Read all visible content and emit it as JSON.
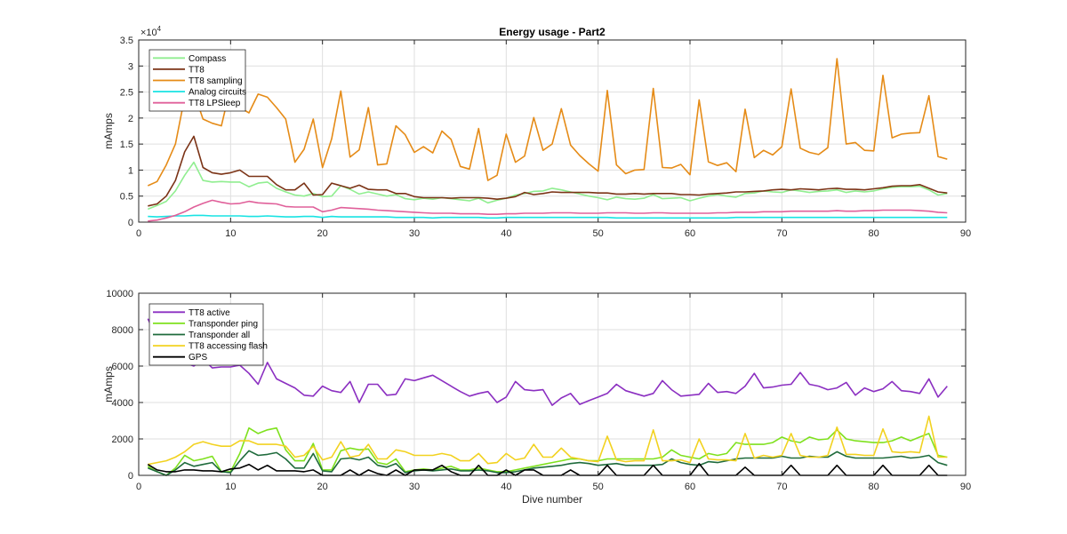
{
  "chart_data": [
    {
      "type": "line",
      "title": "Energy usage - Part2",
      "xlabel": "",
      "ylabel": "mAmps",
      "exponent_label": "×10",
      "exponent_power": "4",
      "xlim": [
        0,
        90
      ],
      "ylim": [
        0,
        35000
      ],
      "xticks": [
        "0",
        "10",
        "20",
        "30",
        "40",
        "50",
        "60",
        "70",
        "80",
        "90"
      ],
      "yticks": [
        "0",
        "0.5",
        "1",
        "1.5",
        "2",
        "2.5",
        "3",
        "3.5"
      ],
      "grid": true,
      "legend_position": "top-left",
      "x_start": 1,
      "series": [
        {
          "name": "Compass",
          "color": "#90ee90",
          "values": [
            2500,
            3200,
            4000,
            6000,
            9000,
            11500,
            8000,
            7700,
            7800,
            7700,
            7700,
            6800,
            7500,
            7700,
            6500,
            5800,
            5200,
            5000,
            5500,
            4900,
            5000,
            7000,
            6300,
            5400,
            5800,
            5400,
            5000,
            5300,
            4500,
            4300,
            4600,
            4400,
            4700,
            4500,
            4300,
            4100,
            4600,
            3700,
            4200,
            4600,
            5200,
            5500,
            5900,
            6000,
            6500,
            6200,
            5800,
            5400,
            5000,
            4700,
            4300,
            4800,
            4500,
            4400,
            4600,
            5300,
            4500,
            4600,
            4700,
            4100,
            4600,
            5000,
            5300,
            5000,
            4800,
            5500,
            5600,
            6000,
            5800,
            5700,
            6200,
            6000,
            5700,
            5900,
            6000,
            6200,
            5700,
            6000,
            5800,
            6000,
            6400,
            6700,
            6800,
            6800,
            6900,
            6200,
            5200,
            5500
          ]
        },
        {
          "name": "TT8",
          "color": "#7b3316",
          "values": [
            3100,
            3500,
            5000,
            8000,
            13500,
            16500,
            10500,
            9500,
            9200,
            9500,
            10000,
            8800,
            8800,
            8800,
            7200,
            6200,
            6200,
            7500,
            5200,
            5300,
            7500,
            7000,
            6500,
            7100,
            6300,
            6200,
            6200,
            5500,
            5500,
            4900,
            4700,
            4700,
            4700,
            4600,
            4700,
            4700,
            4700,
            4600,
            4400,
            4600,
            4900,
            5700,
            5300,
            5500,
            5800,
            5700,
            5700,
            5700,
            5700,
            5600,
            5600,
            5400,
            5400,
            5500,
            5400,
            5500,
            5500,
            5500,
            5300,
            5300,
            5200,
            5400,
            5500,
            5600,
            5800,
            5800,
            5900,
            6000,
            6200,
            6300,
            6200,
            6400,
            6300,
            6200,
            6400,
            6500,
            6300,
            6300,
            6200,
            6400,
            6600,
            6900,
            7000,
            7000,
            7200,
            6500,
            5800,
            5600
          ]
        },
        {
          "name": "TT8 sampling",
          "color": "#e58b17",
          "values": [
            7000,
            7800,
            11000,
            15000,
            24000,
            25000,
            19800,
            19000,
            18500,
            26000,
            22000,
            21000,
            24600,
            24000,
            22000,
            19800,
            11500,
            14000,
            19800,
            10500,
            16000,
            25200,
            12500,
            13900,
            22000,
            11000,
            11200,
            18500,
            16800,
            13400,
            14500,
            13300,
            17500,
            15900,
            10700,
            10200,
            18000,
            8000,
            9000,
            16900,
            11500,
            12700,
            20100,
            13800,
            15000,
            21800,
            14800,
            12800,
            11200,
            9800,
            25300,
            11000,
            9300,
            10000,
            10100,
            25700,
            10500,
            10400,
            11100,
            9100,
            23500,
            11600,
            10900,
            11400,
            9700,
            21700,
            12400,
            13800,
            12900,
            14500,
            25600,
            14200,
            13400,
            13000,
            14300,
            31400,
            15000,
            15300,
            13800,
            13700,
            28200,
            16200,
            16900,
            17100,
            17200,
            24300,
            12600,
            12100
          ]
        },
        {
          "name": "Analog circuits",
          "color": "#19e3e3",
          "values": [
            1100,
            1000,
            1100,
            1200,
            1200,
            1300,
            1300,
            1200,
            1200,
            1200,
            1200,
            1100,
            1100,
            1200,
            1100,
            1000,
            1000,
            1100,
            1100,
            900,
            1100,
            1000,
            1000,
            1000,
            1000,
            1000,
            1000,
            900,
            900,
            900,
            900,
            800,
            900,
            900,
            900,
            900,
            900,
            800,
            800,
            900,
            900,
            900,
            900,
            900,
            900,
            900,
            900,
            900,
            900,
            900,
            900,
            800,
            800,
            800,
            800,
            800,
            800,
            800,
            800,
            800,
            800,
            800,
            800,
            800,
            900,
            900,
            900,
            900,
            900,
            900,
            900,
            900,
            900,
            900,
            900,
            900,
            900,
            900,
            900,
            900,
            900,
            900,
            900,
            900,
            900,
            900,
            900,
            900
          ]
        },
        {
          "name": "TT8 LPSleep",
          "color": "#e0609a",
          "values": [
            200,
            400,
            800,
            1300,
            2000,
            2900,
            3600,
            4200,
            3800,
            3500,
            3600,
            4000,
            3700,
            3600,
            3500,
            3000,
            2900,
            2900,
            2900,
            2000,
            2300,
            2800,
            2700,
            2600,
            2500,
            2300,
            2200,
            2100,
            2000,
            1900,
            1800,
            1700,
            1700,
            1700,
            1600,
            1600,
            1600,
            1500,
            1500,
            1600,
            1600,
            1700,
            1700,
            1700,
            1800,
            1800,
            1800,
            1700,
            1700,
            1700,
            1800,
            1800,
            1800,
            1700,
            1700,
            1800,
            1800,
            1700,
            1700,
            1700,
            1700,
            1700,
            1800,
            1800,
            1900,
            1900,
            1900,
            2000,
            2000,
            2000,
            2100,
            2100,
            2100,
            2100,
            2100,
            2200,
            2100,
            2100,
            2200,
            2200,
            2300,
            2300,
            2300,
            2300,
            2200,
            2100,
            1900,
            1800
          ]
        }
      ]
    },
    {
      "type": "line",
      "title": "",
      "xlabel": "Dive number",
      "ylabel": "mAmps",
      "xlim": [
        0,
        90
      ],
      "ylim": [
        0,
        10000
      ],
      "xticks": [
        "0",
        "10",
        "20",
        "30",
        "40",
        "50",
        "60",
        "70",
        "80",
        "90"
      ],
      "yticks": [
        "0",
        "2000",
        "4000",
        "6000",
        "8000",
        "10000"
      ],
      "grid": true,
      "legend_position": "top-left",
      "x_start": 1,
      "series": [
        {
          "name": "TT8 active",
          "color": "#8b2fc1",
          "values": [
            8600,
            7500,
            6800,
            6500,
            6200,
            6000,
            6400,
            5900,
            5950,
            5950,
            6050,
            5600,
            5000,
            6200,
            5300,
            5050,
            4800,
            4400,
            4350,
            4900,
            4650,
            4550,
            5150,
            4000,
            5000,
            5000,
            4400,
            4450,
            5300,
            5200,
            5350,
            5500,
            5200,
            4900,
            4600,
            4350,
            4500,
            4600,
            4000,
            4300,
            5150,
            4700,
            4650,
            4700,
            3850,
            4250,
            4500,
            3900,
            4100,
            4300,
            4500,
            5000,
            4650,
            4500,
            4350,
            4500,
            5200,
            4700,
            4350,
            4400,
            4450,
            5050,
            4550,
            4600,
            4500,
            4900,
            5600,
            4800,
            4850,
            4950,
            5000,
            5650,
            5000,
            4900,
            4700,
            4800,
            5100,
            4400,
            4800,
            4600,
            4750,
            5150,
            4650,
            4600,
            4500,
            5300,
            4300,
            4900
          ]
        },
        {
          "name": "Transponder ping",
          "color": "#7fe11e",
          "values": [
            500,
            200,
            0,
            400,
            1100,
            800,
            900,
            1050,
            200,
            200,
            1200,
            2600,
            2300,
            2500,
            2600,
            1400,
            800,
            800,
            1750,
            300,
            300,
            1350,
            1500,
            1400,
            1450,
            700,
            600,
            900,
            200,
            300,
            350,
            300,
            400,
            500,
            300,
            300,
            400,
            300,
            200,
            200,
            300,
            400,
            500,
            600,
            700,
            800,
            900,
            900,
            800,
            800,
            900,
            900,
            900,
            900,
            900,
            900,
            1000,
            1400,
            1100,
            1000,
            900,
            1200,
            1100,
            1200,
            1800,
            1700,
            1700,
            1700,
            1800,
            2100,
            1900,
            1800,
            2100,
            1950,
            2000,
            2500,
            2000,
            1900,
            1850,
            1800,
            1800,
            1900,
            2100,
            1900,
            2100,
            2300,
            1100,
            1000
          ]
        },
        {
          "name": "Transponder all",
          "color": "#1f6b3c",
          "values": [
            400,
            200,
            0,
            300,
            700,
            500,
            600,
            700,
            200,
            150,
            800,
            1350,
            1100,
            1150,
            1250,
            900,
            400,
            400,
            1200,
            250,
            200,
            900,
            950,
            850,
            1000,
            550,
            450,
            650,
            150,
            250,
            300,
            250,
            300,
            350,
            250,
            250,
            300,
            250,
            150,
            150,
            200,
            300,
            400,
            450,
            500,
            550,
            650,
            700,
            650,
            550,
            600,
            650,
            550,
            550,
            550,
            550,
            600,
            900,
            700,
            600,
            550,
            750,
            700,
            800,
            900,
            950,
            950,
            950,
            950,
            1050,
            950,
            950,
            1050,
            1000,
            1000,
            1300,
            1050,
            950,
            950,
            950,
            950,
            1000,
            1050,
            950,
            1000,
            1100,
            700,
            550
          ]
        },
        {
          "name": "TT8 accessing flash",
          "color": "#f2d220",
          "values": [
            600,
            700,
            800,
            1000,
            1300,
            1700,
            1850,
            1700,
            1600,
            1600,
            1900,
            1900,
            1700,
            1700,
            1700,
            1600,
            1000,
            1100,
            1600,
            850,
            1000,
            1850,
            1000,
            1100,
            1700,
            900,
            900,
            1400,
            1300,
            1100,
            1100,
            1100,
            1200,
            1100,
            800,
            800,
            1200,
            650,
            700,
            1200,
            850,
            950,
            1700,
            1000,
            1000,
            1500,
            1000,
            900,
            800,
            750,
            2150,
            850,
            750,
            800,
            800,
            2500,
            800,
            800,
            850,
            700,
            2000,
            900,
            850,
            850,
            800,
            2300,
            950,
            1100,
            1000,
            1100,
            2300,
            1100,
            1000,
            1000,
            1100,
            2650,
            1150,
            1150,
            1100,
            1100,
            2550,
            1300,
            1250,
            1300,
            1250,
            3250,
            1000,
            1000
          ]
        },
        {
          "name": "GPS",
          "color": "#000000",
          "values": [
            600,
            300,
            200,
            200,
            300,
            300,
            250,
            250,
            200,
            350,
            400,
            600,
            300,
            550,
            250,
            250,
            250,
            200,
            300,
            0,
            0,
            0,
            300,
            0,
            300,
            100,
            0,
            300,
            0,
            300,
            300,
            300,
            550,
            200,
            0,
            0,
            550,
            0,
            0,
            300,
            0,
            300,
            300,
            0,
            0,
            0,
            300,
            0,
            0,
            0,
            550,
            0,
            0,
            0,
            0,
            550,
            0,
            0,
            0,
            0,
            650,
            0,
            0,
            0,
            0,
            450,
            0,
            0,
            0,
            0,
            550,
            0,
            0,
            0,
            0,
            550,
            0,
            0,
            0,
            0,
            550,
            0,
            0,
            0,
            0,
            550,
            0,
            0
          ]
        }
      ]
    }
  ]
}
